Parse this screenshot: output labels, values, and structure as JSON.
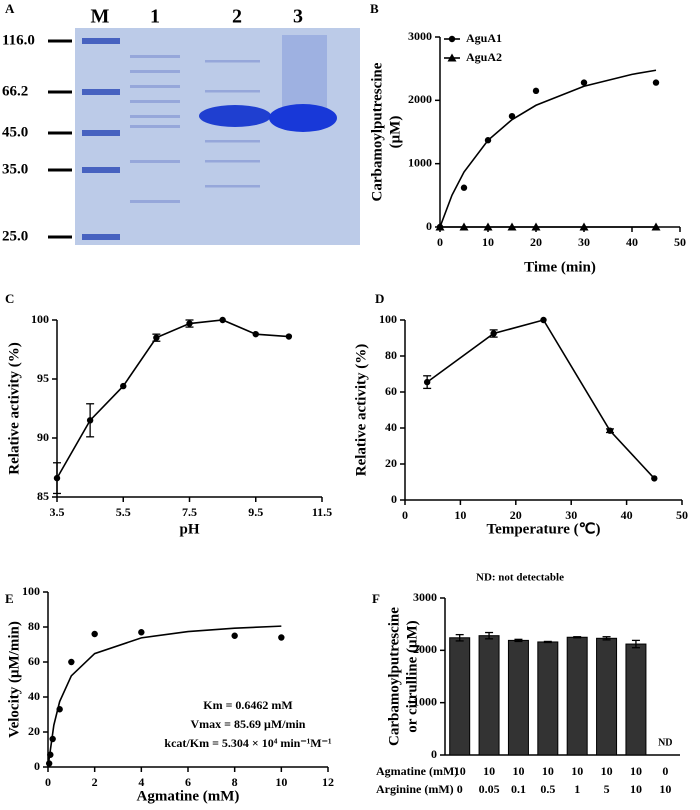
{
  "chart_data": [
    {
      "type": "gel",
      "panel": "A",
      "lanes": [
        "M",
        "1",
        "2",
        "3"
      ],
      "markers": [
        "116.0",
        "66.2",
        "45.0",
        "35.0",
        "25.0"
      ]
    },
    {
      "type": "scatter",
      "panel": "B",
      "xlabel": "Time (min)",
      "ylabel": [
        "Carbamoylputrescine",
        "(μM)"
      ],
      "xlim": [
        0,
        50
      ],
      "xticks": [
        0,
        10,
        20,
        30,
        40,
        50
      ],
      "ylim": [
        0,
        3000
      ],
      "yticks": [
        0,
        1000,
        2000,
        3000
      ],
      "legend": "upper left",
      "series": [
        {
          "name": "AguA1",
          "color": "#000000",
          "marker": "circle",
          "x": [
            0,
            5,
            10,
            15,
            20,
            30,
            45
          ],
          "values": [
            0,
            620,
            1370,
            1750,
            2150,
            2280,
            2280
          ]
        },
        {
          "name": "AguA2",
          "color": "#000000",
          "marker": "triangle",
          "line": true,
          "x": [
            0,
            5,
            10,
            15,
            20,
            30,
            45
          ],
          "values": [
            0,
            0,
            0,
            0,
            0,
            0,
            0
          ]
        },
        {
          "color": "#000000",
          "line": true,
          "x": [
            0,
            2.5,
            5,
            10,
            15,
            20,
            30,
            40,
            45
          ],
          "values": [
            0,
            503,
            868,
            1369,
            1695,
            1922,
            2222,
            2410,
            2475
          ]
        }
      ]
    },
    {
      "type": "line",
      "panel": "C",
      "xlabel": "pH",
      "ylabel": [
        "Relative activity (%)"
      ],
      "xlim": [
        3.5,
        11.5
      ],
      "xticks": [
        3.5,
        5.5,
        7.5,
        9.5,
        11.5
      ],
      "ylim": [
        85,
        100
      ],
      "yticks": [
        85,
        90,
        95,
        100
      ],
      "series": [
        {
          "color": "#000000",
          "marker": "circle",
          "line": true,
          "x": [
            3.5,
            4.5,
            5.5,
            6.5,
            7.5,
            8.5,
            9.5,
            10.5
          ],
          "values": [
            86.6,
            91.5,
            94.4,
            98.5,
            99.7,
            100,
            98.8,
            98.6
          ],
          "errors": [
            1.3,
            1.4,
            0,
            0.3,
            0.3,
            0,
            0,
            0
          ]
        }
      ]
    },
    {
      "type": "line",
      "panel": "D",
      "xlabel": "Temperature (℃)",
      "ylabel": [
        "Relative activity (%)"
      ],
      "xlim": [
        0,
        50
      ],
      "xticks": [
        0,
        10,
        20,
        30,
        40,
        50
      ],
      "ylim": [
        0,
        100
      ],
      "yticks": [
        0,
        20,
        40,
        60,
        80,
        100
      ],
      "series": [
        {
          "color": "#000000",
          "marker": "circle",
          "line": true,
          "x": [
            4,
            16,
            25,
            37,
            45
          ],
          "values": [
            65.5,
            92.5,
            100,
            38.5,
            12
          ],
          "errors": [
            3.5,
            2,
            0,
            1,
            0
          ]
        }
      ]
    },
    {
      "type": "scatter",
      "panel": "E",
      "xlabel": "Agmatine (mM)",
      "ylabel": [
        "Velocity (μM/min)"
      ],
      "xlim": [
        0,
        12
      ],
      "xticks": [
        0,
        2,
        4,
        6,
        8,
        10,
        12
      ],
      "ylim": [
        0,
        100
      ],
      "yticks": [
        0,
        20,
        40,
        60,
        80,
        100
      ],
      "annotations": [
        "Km = 0.6462 mM",
        "Vmax = 85.69 μM/min",
        "kcat/Km = 5.304 × 10⁴ min⁻¹M⁻¹"
      ],
      "series": [
        {
          "color": "#000000",
          "marker": "circle",
          "x": [
            0.05,
            0.1,
            0.2,
            0.5,
            1,
            2,
            4,
            8,
            10
          ],
          "values": [
            2,
            7,
            16,
            33,
            60,
            76,
            77,
            75,
            74
          ]
        },
        {
          "color": "#000000",
          "line": true,
          "x": [
            0,
            0.25,
            0.5,
            1,
            2,
            4,
            6,
            8,
            10
          ],
          "values": [
            0,
            23.9,
            37.4,
            52.1,
            64.8,
            73.8,
            77.4,
            79.3,
            80.5
          ]
        }
      ]
    },
    {
      "type": "bar",
      "panel": "F",
      "annotation": "ND: not detectable",
      "ylabel": [
        "Carbamoylputrescine",
        "or citrulline (μM)"
      ],
      "ylim": [
        0,
        3000
      ],
      "yticks": [
        0,
        1000,
        2000,
        3000
      ],
      "color": "#333333",
      "category_rows": [
        {
          "name": "Agmatine (mM)",
          "labels": [
            10,
            10,
            10,
            10,
            10,
            10,
            10,
            0
          ]
        },
        {
          "name": "Arginine (mM)",
          "labels": [
            0,
            0.05,
            0.1,
            0.5,
            1,
            5,
            10,
            10
          ]
        }
      ],
      "values": [
        2240,
        2280,
        2190,
        2160,
        2250,
        2230,
        2120,
        null
      ],
      "errors": [
        60,
        60,
        20,
        10,
        10,
        30,
        70,
        null
      ],
      "value_labels": [
        null,
        null,
        null,
        null,
        null,
        null,
        null,
        "ND"
      ]
    }
  ]
}
